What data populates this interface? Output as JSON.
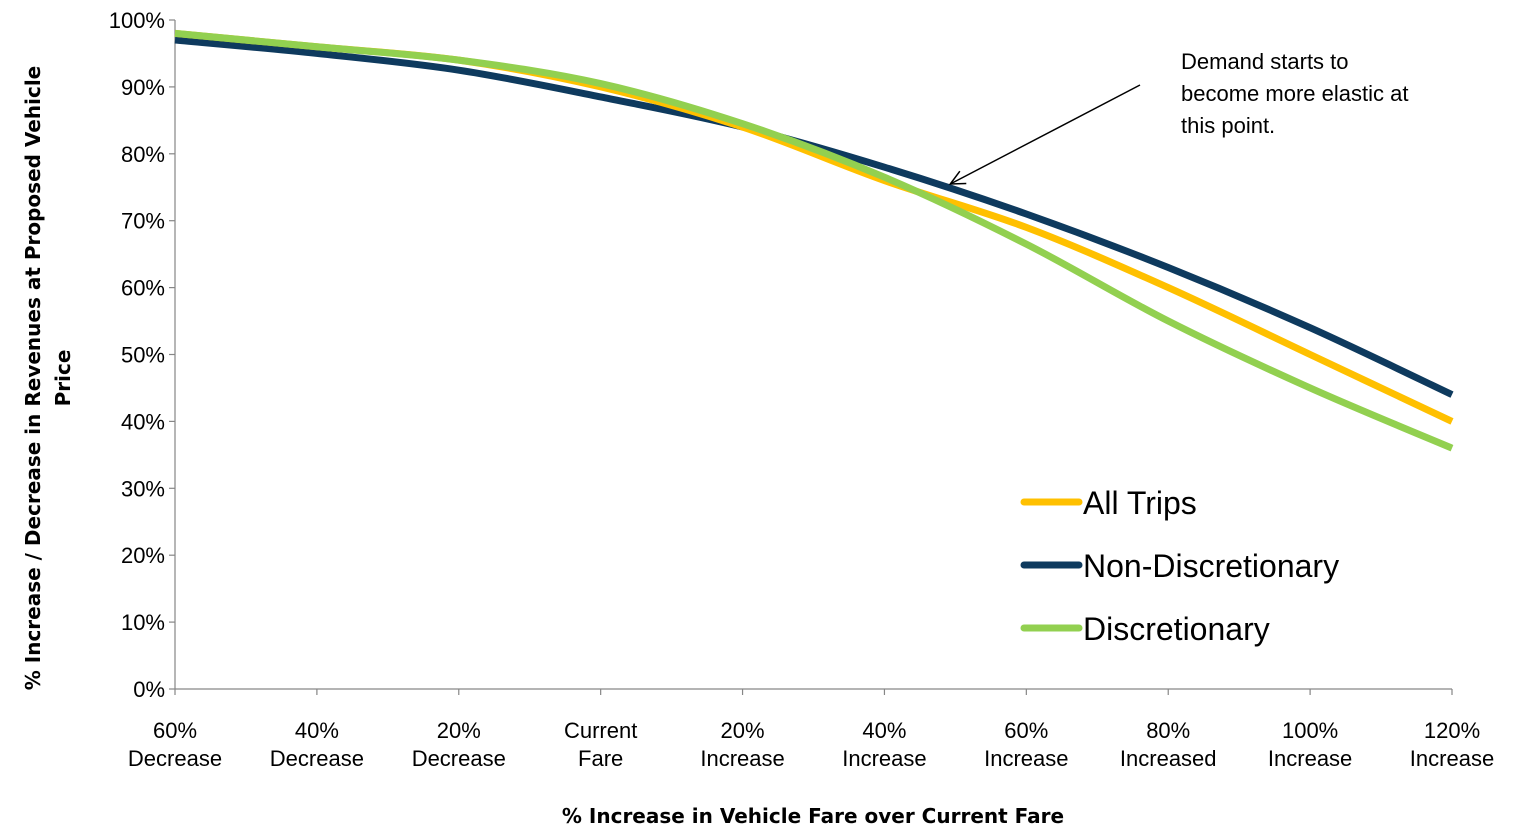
{
  "chart_data": {
    "type": "line",
    "title": "",
    "xlabel": "% Increase in Vehicle Fare over Current Fare",
    "ylabel_lines": [
      "% Increase / Decrease in Revenues at Proposed Vehicle",
      "Price"
    ],
    "categories": [
      [
        "60%",
        "Decrease"
      ],
      [
        "40%",
        "Decrease"
      ],
      [
        "20%",
        "Decrease"
      ],
      [
        "Current",
        "Fare"
      ],
      [
        "20%",
        "Increase"
      ],
      [
        "40%",
        "Increase"
      ],
      [
        "60%",
        "Increase"
      ],
      [
        "80%",
        "Increased"
      ],
      [
        "100%",
        "Increase"
      ],
      [
        "120%",
        "Increase"
      ]
    ],
    "y_ticks": [
      "0%",
      "10%",
      "20%",
      "30%",
      "40%",
      "50%",
      "60%",
      "70%",
      "80%",
      "90%",
      "100%"
    ],
    "ylim": [
      0,
      100
    ],
    "grid": false,
    "legend_position": "bottom-right",
    "series": [
      {
        "name": "All Trips",
        "color": "#FFC000",
        "values": [
          98,
          96,
          94,
          90,
          84,
          76,
          69,
          60,
          50,
          40
        ]
      },
      {
        "name": "Non-Discretionary",
        "color": "#0E3A5E",
        "values": [
          97,
          95,
          92.5,
          88.5,
          84,
          78,
          71,
          63,
          54,
          44
        ]
      },
      {
        "name": "Discretionary",
        "color": "#92D050",
        "values": [
          98,
          96,
          94,
          90.5,
          84.5,
          76.5,
          66.5,
          55,
          45,
          36
        ]
      }
    ],
    "annotation": {
      "lines": [
        "Demand starts to",
        "become more elastic at",
        "this point."
      ],
      "points_to_category_index": 5.45
    }
  }
}
